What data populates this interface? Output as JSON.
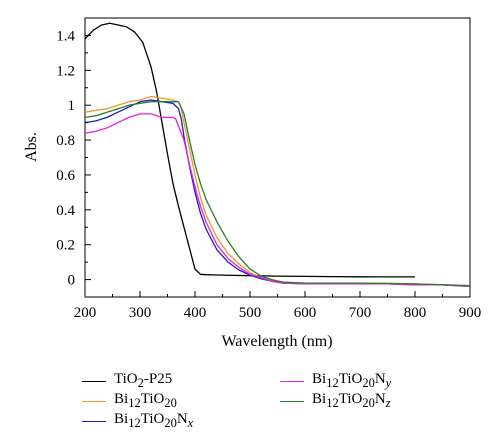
{
  "chart_data": {
    "type": "line",
    "xlabel": "Wavelength (nm)",
    "ylabel": "Abs.",
    "xlim": [
      200,
      900
    ],
    "ylim": [
      -0.1,
      1.5
    ],
    "x_ticks": [
      200,
      300,
      400,
      500,
      600,
      700,
      800,
      900
    ],
    "y_ticks": [
      0,
      0.2,
      0.4,
      0.6,
      0.8,
      1,
      1.2,
      1.4
    ],
    "y_tick_labels": [
      "0",
      "0.2",
      "0.4",
      "0.6",
      "0.8",
      "1",
      "1.2",
      "1.4"
    ],
    "grid": false,
    "legend_position": "bottom",
    "series": [
      {
        "name": "TiO2-P25",
        "legend": {
          "base": "TiO",
          "sub": "2",
          "suffix": "-P25",
          "sub2": "",
          "italic": ""
        },
        "color": "#000000",
        "x": [
          200,
          215,
          230,
          245,
          260,
          275,
          290,
          305,
          320,
          330,
          340,
          350,
          360,
          370,
          380,
          390,
          400,
          410,
          420,
          440,
          470,
          500,
          550,
          600,
          650,
          700,
          750,
          800
        ],
        "y": [
          1.38,
          1.43,
          1.46,
          1.47,
          1.46,
          1.45,
          1.42,
          1.36,
          1.22,
          1.08,
          0.9,
          0.72,
          0.55,
          0.42,
          0.3,
          0.18,
          0.06,
          0.03,
          0.028,
          0.026,
          0.024,
          0.022,
          0.02,
          0.018,
          0.017,
          0.016,
          0.015,
          0.015
        ]
      },
      {
        "name": "Bi12TiO20",
        "legend": {
          "base": "Bi",
          "sub": "12",
          "suffix": "TiO",
          "sub2": "20",
          "italic": ""
        },
        "color": "#e89a2c",
        "x": [
          200,
          220,
          240,
          260,
          280,
          300,
          320,
          340,
          360,
          370,
          375,
          380,
          390,
          400,
          410,
          420,
          440,
          460,
          480,
          500,
          520,
          540,
          560,
          600,
          650,
          700,
          750,
          800,
          850,
          900
        ],
        "y": [
          0.96,
          0.97,
          0.98,
          1.0,
          1.02,
          1.03,
          1.05,
          1.04,
          1.03,
          1.02,
          0.98,
          0.9,
          0.75,
          0.6,
          0.47,
          0.37,
          0.24,
          0.15,
          0.09,
          0.04,
          0.01,
          -0.005,
          -0.015,
          -0.02,
          -0.02,
          -0.02,
          -0.022,
          -0.025,
          -0.03,
          -0.035
        ]
      },
      {
        "name": "Bi12TiO20Nx",
        "legend": {
          "base": "Bi",
          "sub": "12",
          "suffix": "TiO",
          "sub2": "20",
          "tail": "N",
          "italic": "x"
        },
        "color": "#1b1bc9",
        "x": [
          200,
          220,
          240,
          260,
          280,
          300,
          320,
          340,
          360,
          370,
          375,
          380,
          390,
          400,
          410,
          420,
          440,
          460,
          480,
          500,
          520,
          540,
          560,
          600,
          650,
          700,
          750,
          800,
          850,
          900
        ],
        "y": [
          0.9,
          0.91,
          0.93,
          0.96,
          0.99,
          1.02,
          1.03,
          1.02,
          1.01,
          0.98,
          0.92,
          0.82,
          0.65,
          0.5,
          0.38,
          0.29,
          0.17,
          0.1,
          0.055,
          0.025,
          0.005,
          -0.01,
          -0.02,
          -0.025,
          -0.025,
          -0.025,
          -0.025,
          -0.03,
          -0.03,
          -0.04
        ]
      },
      {
        "name": "Bi12TiO20Ny",
        "legend": {
          "base": "Bi",
          "sub": "12",
          "suffix": "TiO",
          "sub2": "20",
          "tail": "N",
          "italic": "y"
        },
        "color": "#e61ee6",
        "x": [
          200,
          220,
          240,
          260,
          280,
          300,
          320,
          340,
          360,
          365,
          370,
          380,
          390,
          400,
          410,
          420,
          440,
          460,
          480,
          500,
          520,
          540,
          560,
          600,
          650,
          700,
          750,
          800,
          850,
          900
        ],
        "y": [
          0.84,
          0.85,
          0.87,
          0.9,
          0.93,
          0.95,
          0.95,
          0.93,
          0.93,
          0.92,
          0.88,
          0.8,
          0.66,
          0.53,
          0.42,
          0.33,
          0.2,
          0.12,
          0.07,
          0.03,
          0.01,
          -0.01,
          -0.02,
          -0.025,
          -0.025,
          -0.025,
          -0.025,
          -0.03,
          -0.03,
          -0.04
        ]
      },
      {
        "name": "Bi12TiO20Nz",
        "legend": {
          "base": "Bi",
          "sub": "12",
          "suffix": "TiO",
          "sub2": "20",
          "tail": "N",
          "italic": "z"
        },
        "color": "#2a7d2a",
        "x": [
          200,
          220,
          240,
          260,
          280,
          300,
          320,
          340,
          360,
          370,
          380,
          390,
          400,
          410,
          420,
          440,
          460,
          480,
          500,
          520,
          540,
          560,
          600,
          650,
          700,
          750,
          800,
          850,
          900
        ],
        "y": [
          0.93,
          0.94,
          0.96,
          0.98,
          1.0,
          1.01,
          1.02,
          1.02,
          1.02,
          1.02,
          0.95,
          0.8,
          0.66,
          0.55,
          0.46,
          0.33,
          0.22,
          0.13,
          0.06,
          0.02,
          0.0,
          -0.015,
          -0.02,
          -0.02,
          -0.02,
          -0.022,
          -0.025,
          -0.03,
          -0.035
        ]
      }
    ]
  }
}
